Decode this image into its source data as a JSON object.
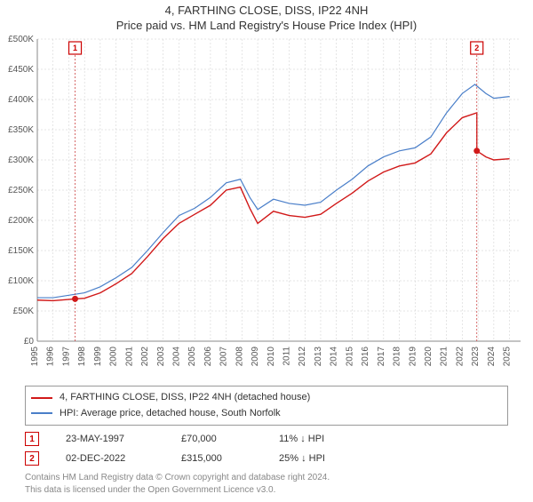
{
  "title1": "4, FARTHING CLOSE, DISS, IP22 4NH",
  "title2": "Price paid vs. HM Land Registry's House Price Index (HPI)",
  "chart": {
    "type": "line",
    "background_color": "#ffffff",
    "grid_color": "#cccccc",
    "axis_color": "#888888",
    "x_years": [
      1995,
      1996,
      1997,
      1998,
      1999,
      2000,
      2001,
      2002,
      2003,
      2004,
      2005,
      2006,
      2007,
      2008,
      2009,
      2010,
      2011,
      2012,
      2013,
      2014,
      2015,
      2016,
      2017,
      2018,
      2019,
      2020,
      2021,
      2022,
      2023,
      2024,
      2025
    ],
    "y_ticks": [
      0,
      50000,
      100000,
      150000,
      200000,
      250000,
      300000,
      350000,
      400000,
      450000,
      500000
    ],
    "y_tick_labels": [
      "£0",
      "£50K",
      "£100K",
      "£150K",
      "£200K",
      "£250K",
      "£300K",
      "£350K",
      "£400K",
      "£450K",
      "£500K"
    ],
    "ylim": [
      0,
      500000
    ],
    "xlim": [
      1995,
      2025.7
    ],
    "series": [
      {
        "name": "price_paid",
        "label": "4, FARTHING CLOSE, DISS, IP22 4NH (detached house)",
        "color": "#d11919",
        "width": 1.4,
        "data": [
          [
            1995,
            68000
          ],
          [
            1996,
            67000
          ],
          [
            1997.4,
            70000
          ],
          [
            1998,
            71000
          ],
          [
            1999,
            80000
          ],
          [
            2000,
            95000
          ],
          [
            2001,
            112000
          ],
          [
            2002,
            140000
          ],
          [
            2003,
            170000
          ],
          [
            2004,
            195000
          ],
          [
            2005,
            210000
          ],
          [
            2006,
            225000
          ],
          [
            2007,
            250000
          ],
          [
            2007.9,
            255000
          ],
          [
            2008.5,
            220000
          ],
          [
            2009,
            195000
          ],
          [
            2010,
            215000
          ],
          [
            2011,
            208000
          ],
          [
            2012,
            205000
          ],
          [
            2013,
            210000
          ],
          [
            2014,
            228000
          ],
          [
            2015,
            245000
          ],
          [
            2016,
            265000
          ],
          [
            2017,
            280000
          ],
          [
            2018,
            290000
          ],
          [
            2019,
            295000
          ],
          [
            2020,
            310000
          ],
          [
            2021,
            345000
          ],
          [
            2022,
            370000
          ],
          [
            2022.92,
            378000
          ],
          [
            2022.921,
            315000
          ],
          [
            2023.5,
            305000
          ],
          [
            2024,
            300000
          ],
          [
            2025,
            302000
          ]
        ]
      },
      {
        "name": "hpi",
        "label": "HPI: Average price, detached house, South Norfolk",
        "color": "#4a7fc9",
        "width": 1.2,
        "data": [
          [
            1995,
            72000
          ],
          [
            1996,
            72000
          ],
          [
            1997,
            76000
          ],
          [
            1998,
            80000
          ],
          [
            1999,
            90000
          ],
          [
            2000,
            105000
          ],
          [
            2001,
            122000
          ],
          [
            2002,
            150000
          ],
          [
            2003,
            180000
          ],
          [
            2004,
            208000
          ],
          [
            2005,
            220000
          ],
          [
            2006,
            238000
          ],
          [
            2007,
            262000
          ],
          [
            2007.9,
            268000
          ],
          [
            2008.5,
            238000
          ],
          [
            2009,
            218000
          ],
          [
            2010,
            235000
          ],
          [
            2011,
            228000
          ],
          [
            2012,
            225000
          ],
          [
            2013,
            230000
          ],
          [
            2014,
            250000
          ],
          [
            2015,
            268000
          ],
          [
            2016,
            290000
          ],
          [
            2017,
            305000
          ],
          [
            2018,
            315000
          ],
          [
            2019,
            320000
          ],
          [
            2020,
            338000
          ],
          [
            2021,
            378000
          ],
          [
            2022,
            410000
          ],
          [
            2022.8,
            425000
          ],
          [
            2023.5,
            410000
          ],
          [
            2024,
            402000
          ],
          [
            2025,
            405000
          ]
        ]
      }
    ],
    "transactions": [
      {
        "n": "1",
        "year": 1997.4,
        "price": 70000
      },
      {
        "n": "2",
        "year": 2022.92,
        "price": 315000
      }
    ]
  },
  "legend": {
    "items": [
      {
        "color": "#d11919",
        "label": "4, FARTHING CLOSE, DISS, IP22 4NH (detached house)"
      },
      {
        "color": "#4a7fc9",
        "label": "HPI: Average price, detached house, South Norfolk"
      }
    ]
  },
  "tx_rows": [
    {
      "n": "1",
      "date": "23-MAY-1997",
      "price": "£70,000",
      "pct": "11% ↓ HPI"
    },
    {
      "n": "2",
      "date": "02-DEC-2022",
      "price": "£315,000",
      "pct": "25% ↓ HPI"
    }
  ],
  "attribution": {
    "line1": "Contains HM Land Registry data © Crown copyright and database right 2024.",
    "line2": "This data is licensed under the Open Government Licence v3.0."
  }
}
